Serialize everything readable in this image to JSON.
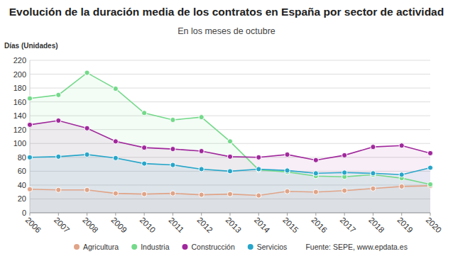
{
  "chart_data": {
    "type": "line",
    "title": "Evolución de la duración media de los contratos en España por sector de actividad",
    "subtitle": "En los meses de octubre",
    "y_label": "Días (Unidades)",
    "source": "Fuente: SEPE, www.epdata.es",
    "categories": [
      "2006",
      "2007",
      "2008",
      "2009",
      "2010",
      "2011",
      "2012",
      "2013",
      "2014",
      "2015",
      "2016",
      "2017",
      "2018",
      "2019",
      "2020"
    ],
    "series": [
      {
        "name": "Agricultura",
        "color": "#e0a488",
        "values": [
          34,
          33,
          33,
          28,
          27,
          28,
          26,
          27,
          25,
          31,
          30,
          32,
          35,
          38,
          39
        ]
      },
      {
        "name": "Industria",
        "color": "#74d98a",
        "values": [
          165,
          170,
          202,
          179,
          144,
          134,
          138,
          103,
          62,
          59,
          53,
          52,
          55,
          50,
          41
        ]
      },
      {
        "name": "Construcción",
        "color": "#a0289c",
        "values": [
          127,
          133,
          122,
          103,
          94,
          92,
          89,
          81,
          80,
          84,
          76,
          83,
          95,
          97,
          86
        ]
      },
      {
        "name": "Servicios",
        "color": "#27a6c9",
        "values": [
          80,
          81,
          84,
          79,
          71,
          69,
          63,
          60,
          63,
          61,
          57,
          58,
          57,
          55,
          65
        ]
      }
    ],
    "ylim": [
      0,
      220
    ],
    "yticks": [
      0,
      20,
      40,
      60,
      80,
      100,
      120,
      140,
      160,
      180,
      200,
      220
    ],
    "grid": true,
    "legend": "bottom",
    "marker": "circle"
  }
}
